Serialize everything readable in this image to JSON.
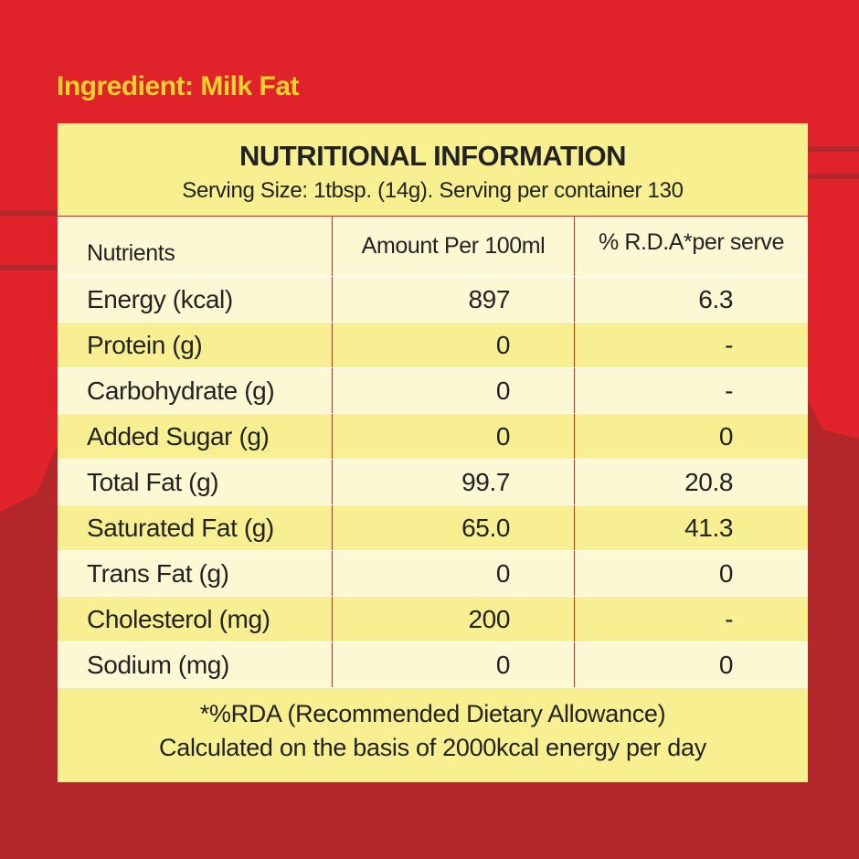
{
  "ingredient": "Ingredient: Milk Fat",
  "panel": {
    "title": "NUTRITIONAL INFORMATION",
    "serving": "Serving Size: 1tbsp. (14g). Serving per container 130",
    "table": {
      "header": [
        "Nutrients",
        "Amount Per 100ml",
        "% R.D.A*per serve"
      ],
      "rows": [
        [
          "Energy (kcal)",
          "897",
          "6.3"
        ],
        [
          "Protein (g)",
          "0",
          "-"
        ],
        [
          "Carbohydrate (g)",
          "0",
          "-"
        ],
        [
          "Added Sugar (g)",
          "0",
          "0"
        ],
        [
          "Total Fat (g)",
          "99.7",
          "20.8"
        ],
        [
          "Saturated Fat (g)",
          "65.0",
          "41.3"
        ],
        [
          "Trans Fat (g)",
          "0",
          "0"
        ],
        [
          "Cholesterol (mg)",
          "200",
          "-"
        ],
        [
          "Sodium (mg)",
          "0",
          "0"
        ]
      ]
    },
    "footnote": [
      "*%RDA (Recommended Dietary Allowance)",
      "Calculated on the basis of 2000kcal energy per day"
    ]
  }
}
